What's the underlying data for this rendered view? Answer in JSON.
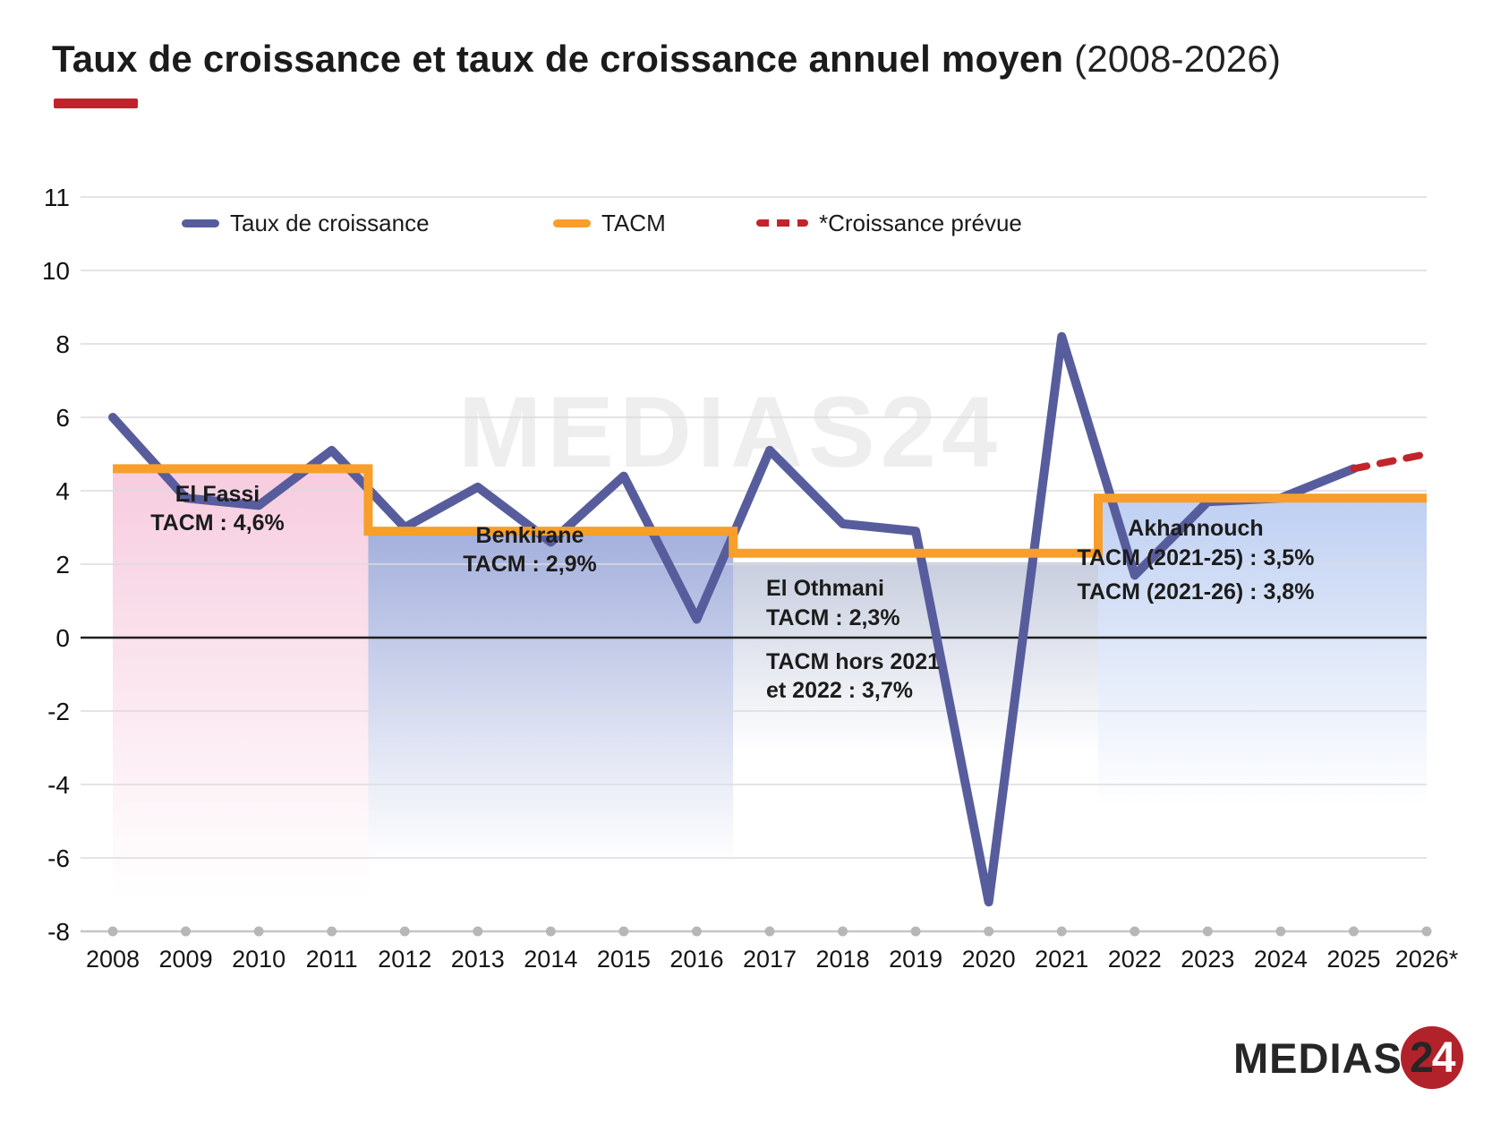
{
  "title": {
    "main": "Taux de croissance et  taux de croissance annuel moyen ",
    "period": "(2008-2026)"
  },
  "accent_color": "#c1232d",
  "watermark": {
    "text": "MEDIAS24"
  },
  "legend": {
    "items": [
      {
        "label": "Taux de croissance",
        "swatch": "solid-line",
        "color": "#575d9c"
      },
      {
        "label": "TACM",
        "swatch": "solid-line",
        "color": "#f89e2b"
      },
      {
        "label": "*Croissance prévue",
        "swatch": "dashed-line",
        "color": "#c2242c"
      }
    ]
  },
  "annotations": [
    {
      "id": "el-fassi",
      "lines": [
        "El Fassi",
        "TACM : 4,6%"
      ]
    },
    {
      "id": "benkirane",
      "lines": [
        "Benkirane",
        "TACM : 2,9%"
      ]
    },
    {
      "id": "el-othmani",
      "lines": [
        "El Othmani",
        "TACM : 2,3%"
      ]
    },
    {
      "id": "el-othmani-extra",
      "lines": [
        "TACM hors 2021",
        "et 2022 : 3,7%"
      ]
    },
    {
      "id": "akhannouch",
      "lines": [
        "Akhannouch",
        "TACM (2021-25) : 3,5%",
        "TACM (2021-26) : 3,8%"
      ]
    }
  ],
  "footer_logo": {
    "brand": "MEDIAS",
    "digit2": "2",
    "digit4": "4"
  },
  "chart_data": {
    "type": "line",
    "title": "Taux de croissance et taux de croissance annuel moyen (2008-2026)",
    "x_labels": [
      "2008",
      "2009",
      "2010",
      "2011",
      "2012",
      "2013",
      "2014",
      "2015",
      "2016",
      "2017",
      "2018",
      "2019",
      "2020",
      "2021",
      "2022",
      "2023",
      "2024",
      "2025",
      "2026*"
    ],
    "years": [
      2008,
      2009,
      2010,
      2011,
      2012,
      2013,
      2014,
      2015,
      2016,
      2017,
      2018,
      2019,
      2020,
      2021,
      2022,
      2023,
      2024,
      2025,
      2026
    ],
    "y_ticks": [
      11,
      10,
      8,
      6,
      4,
      2,
      0,
      -2,
      -4,
      -6,
      -8
    ],
    "ylim": [
      -8,
      12
    ],
    "grid": true,
    "legend_position": "top",
    "series": [
      {
        "name": "Taux de croissance",
        "type": "line",
        "color": "#575d9c",
        "years": [
          2008,
          2009,
          2010,
          2011,
          2012,
          2013,
          2014,
          2015,
          2016,
          2017,
          2018,
          2019,
          2020,
          2021,
          2022,
          2023,
          2024,
          2025
        ],
        "values": [
          6.0,
          3.8,
          3.6,
          5.1,
          3.0,
          4.1,
          2.6,
          4.4,
          0.5,
          5.1,
          3.1,
          2.9,
          -7.2,
          8.2,
          1.7,
          3.7,
          3.8,
          4.6
        ]
      },
      {
        "name": "*Croissance prévue",
        "type": "dashed-line",
        "color": "#c2242c",
        "years": [
          2025,
          2026
        ],
        "values": [
          4.6,
          5.0
        ]
      },
      {
        "name": "TACM",
        "type": "step",
        "color": "#f89e2b",
        "steps": [
          {
            "government": "El Fassi",
            "from": 2008,
            "to": 2011.5,
            "value": 4.6
          },
          {
            "government": "Benkirane",
            "from": 2011.5,
            "to": 2016.5,
            "value": 2.9
          },
          {
            "government": "El Othmani",
            "from": 2016.5,
            "to": 2021.5,
            "value": 2.3
          },
          {
            "government": "Akhannouch",
            "from": 2021.5,
            "to": 2026,
            "value": 3.8
          }
        ]
      }
    ],
    "regions": [
      {
        "name": "El Fassi",
        "from": 2008,
        "to": 2011.5,
        "top_value": 4.6,
        "fade_to": -7.1,
        "color": "#f5c3d9",
        "opacity": 0.85
      },
      {
        "name": "Benkirane",
        "from": 2011.5,
        "to": 2016.5,
        "top_value": 2.9,
        "fade_to": -6.2,
        "color": "#8d9cd4",
        "opacity": 0.8
      },
      {
        "name": "El Othmani",
        "from": 2016.5,
        "to": 2021.5,
        "top_value": 2.05,
        "fade_to": -3.2,
        "color": "#a3adc9",
        "opacity": 0.6
      },
      {
        "name": "Akhannouch",
        "from": 2021.5,
        "to": 2026,
        "top_value": 3.75,
        "fade_to": -4.6,
        "color": "#a9c0ee",
        "opacity": 0.75
      }
    ]
  }
}
